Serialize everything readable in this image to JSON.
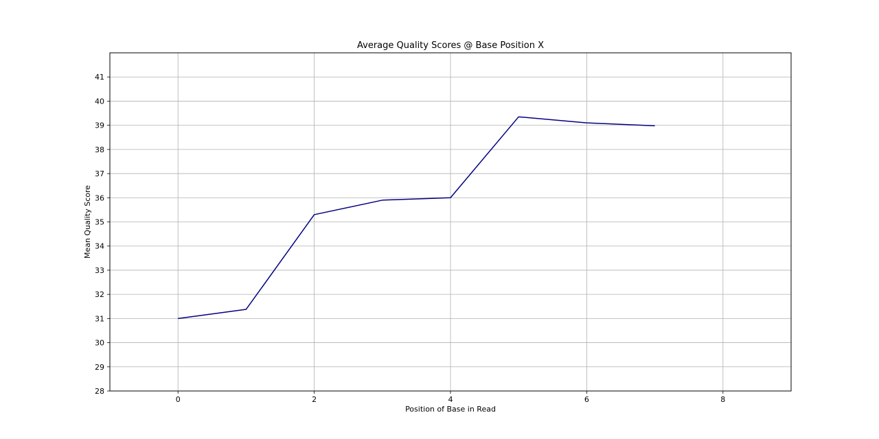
{
  "chart_data": {
    "type": "line",
    "title": "Average Quality Scores @ Base Position X",
    "xlabel": "Position of Base in Read",
    "ylabel": "Mean Quality Score",
    "xlim": [
      -1,
      9
    ],
    "ylim": [
      28,
      42
    ],
    "xticks": [
      0,
      2,
      4,
      6,
      8
    ],
    "yticks": [
      28,
      29,
      30,
      31,
      32,
      33,
      34,
      35,
      36,
      37,
      38,
      39,
      40,
      41
    ],
    "grid": true,
    "legend": "none",
    "series": [
      {
        "color": "#000080",
        "x": [
          0,
          1,
          2,
          3,
          4,
          5,
          6,
          7
        ],
        "y": [
          31.0,
          31.38,
          35.3,
          35.9,
          36.0,
          39.35,
          39.1,
          38.98
        ]
      }
    ]
  }
}
